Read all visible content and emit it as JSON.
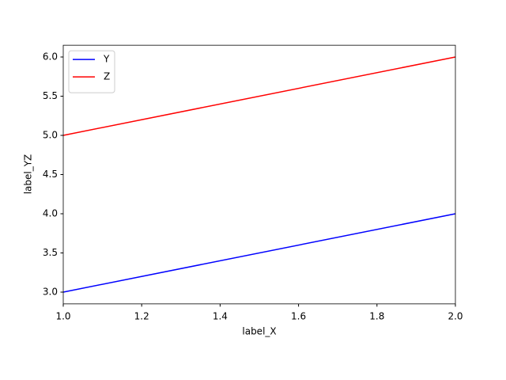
{
  "chart_data": {
    "type": "line",
    "x_label": "label_X",
    "y_label": "label_YZ",
    "x": [
      1.0,
      2.0
    ],
    "series": [
      {
        "name": "Y",
        "color": "#0000ff",
        "values": [
          3.0,
          4.0
        ]
      },
      {
        "name": "Z",
        "color": "#ff0000",
        "values": [
          5.0,
          6.0
        ]
      }
    ],
    "xlim": [
      1.0,
      2.0
    ],
    "xticks": [
      {
        "value": 1.0,
        "label": "1.0"
      },
      {
        "value": 1.2,
        "label": "1.2"
      },
      {
        "value": 1.4,
        "label": "1.4"
      },
      {
        "value": 1.6,
        "label": "1.6"
      },
      {
        "value": 1.8,
        "label": "1.8"
      },
      {
        "value": 2.0,
        "label": "2.0"
      }
    ],
    "ylim": [
      2.85,
      6.15
    ],
    "yticks": [
      {
        "value": 3.0,
        "label": "3.0"
      },
      {
        "value": 3.5,
        "label": "3.5"
      },
      {
        "value": 4.0,
        "label": "4.0"
      },
      {
        "value": 4.5,
        "label": "4.5"
      },
      {
        "value": 5.0,
        "label": "5.0"
      },
      {
        "value": 5.5,
        "label": "5.5"
      },
      {
        "value": 6.0,
        "label": "6.0"
      }
    ],
    "grid": false,
    "legend": "upper left"
  }
}
